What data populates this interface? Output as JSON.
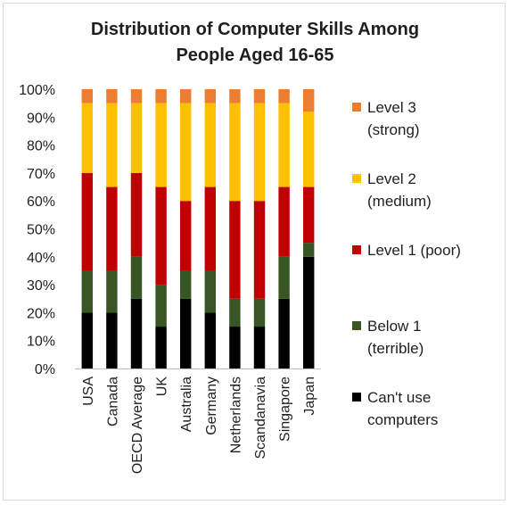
{
  "chart_data": {
    "type": "bar",
    "stacked": true,
    "title": "Distribution of Computer Skills Among People Aged 16-65",
    "title_lines": [
      "Distribution of Computer Skills Among",
      "People Aged 16-65"
    ],
    "xlabel": "",
    "ylabel": "",
    "y_format": "percent",
    "ylim": [
      0,
      100
    ],
    "yticks": [
      0,
      10,
      20,
      30,
      40,
      50,
      60,
      70,
      80,
      90,
      100
    ],
    "ytick_labels": [
      "0%",
      "10%",
      "20%",
      "30%",
      "40%",
      "50%",
      "60%",
      "70%",
      "80%",
      "90%",
      "100%"
    ],
    "grid": false,
    "legend_position": "right",
    "categories": [
      "USA",
      "Canada",
      "OECD Average",
      "UK",
      "Australia",
      "Germany",
      "Netherlands",
      "Scandanavia",
      "Singapore",
      "Japan"
    ],
    "series": [
      {
        "name": "Can't use computers",
        "legend_lines": [
          "Can't use",
          "computers"
        ],
        "color": "#000000",
        "values": [
          20,
          20,
          25,
          15,
          25,
          20,
          15,
          15,
          25,
          40
        ]
      },
      {
        "name": "Below 1 (terrible)",
        "legend_lines": [
          "Below 1",
          "(terrible)"
        ],
        "color": "#375623",
        "values": [
          15,
          15,
          15,
          15,
          10,
          15,
          10,
          10,
          15,
          5
        ]
      },
      {
        "name": "Level 1 (poor)",
        "legend_lines": [
          "Level 1 (poor)"
        ],
        "color": "#c00000",
        "values": [
          35,
          30,
          30,
          35,
          25,
          30,
          35,
          35,
          25,
          20
        ]
      },
      {
        "name": "Level 2 (medium)",
        "legend_lines": [
          "Level 2",
          "(medium)"
        ],
        "color": "#ffc000",
        "values": [
          25,
          30,
          25,
          30,
          35,
          30,
          35,
          35,
          30,
          27
        ]
      },
      {
        "name": "Level 3 (strong)",
        "legend_lines": [
          "Level 3",
          "(strong)"
        ],
        "color": "#ed7d31",
        "values": [
          5,
          5,
          5,
          5,
          5,
          5,
          5,
          5,
          5,
          8
        ]
      }
    ]
  }
}
